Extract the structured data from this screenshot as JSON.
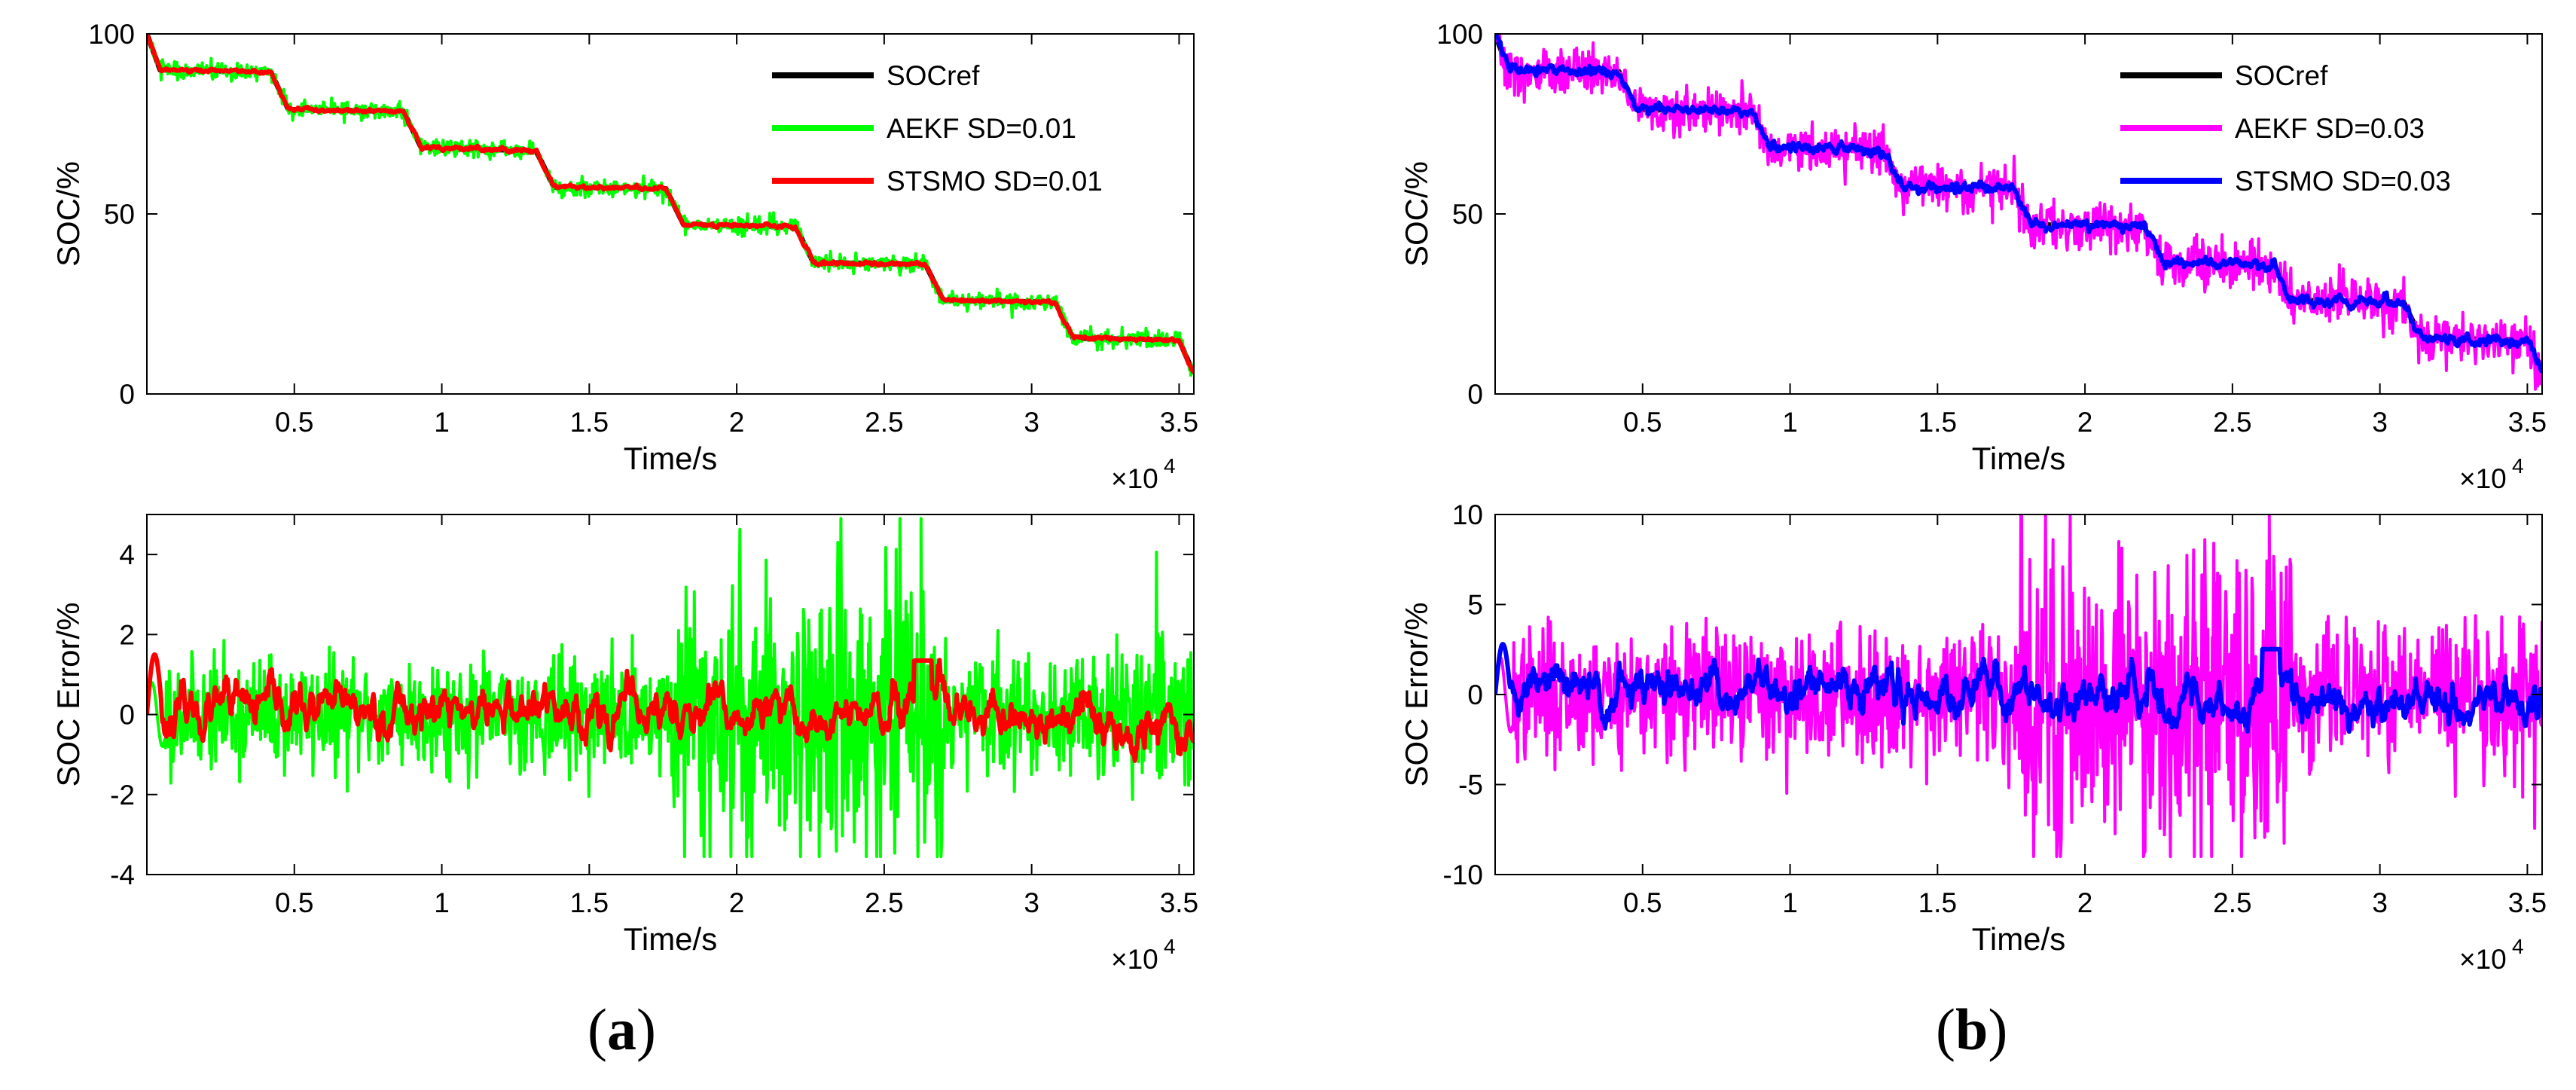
{
  "figure": {
    "panel_labels": [
      {
        "open": "(",
        "letter": "a",
        "close": ")"
      },
      {
        "open": "(",
        "letter": "b",
        "close": ")"
      }
    ]
  },
  "chart_data": [
    {
      "id": "a-top",
      "type": "line",
      "ylabel": "SOC/%",
      "xlabel": "Time/s",
      "x_exponent_label": "×10",
      "x_exponent": "4",
      "xlim": [
        0,
        3.55
      ],
      "ylim": [
        0,
        100
      ],
      "xticks": [
        0.5,
        1,
        1.5,
        2,
        2.5,
        3,
        3.5
      ],
      "xtick_labels": [
        "0.5",
        "1",
        "1.5",
        "2",
        "2.5",
        "3",
        "3.5"
      ],
      "yticks": [
        0,
        50,
        100
      ],
      "ytick_labels": [
        "0",
        "50",
        "100"
      ],
      "legend": {
        "position": "top-right"
      },
      "series": [
        {
          "name": "SOCref",
          "color": "#000000",
          "kind": "soc_ref"
        },
        {
          "name": "AEKF SD=0.01",
          "color": "#00ff00",
          "kind": "soc_noisy",
          "noise": 1.2
        },
        {
          "name": "STSMO SD=0.01",
          "color": "#ff0000",
          "kind": "soc_noisy",
          "noise": 0.35
        }
      ]
    },
    {
      "id": "a-bottom",
      "type": "line",
      "ylabel": "SOC Error/%",
      "xlabel": "Time/s",
      "x_exponent_label": "×10",
      "x_exponent": "4",
      "xlim": [
        0,
        3.55
      ],
      "ylim": [
        -4,
        5
      ],
      "xticks": [
        0.5,
        1,
        1.5,
        2,
        2.5,
        3,
        3.5
      ],
      "xtick_labels": [
        "0.5",
        "1",
        "1.5",
        "2",
        "2.5",
        "3",
        "3.5"
      ],
      "yticks": [
        -4,
        -2,
        0,
        2,
        4
      ],
      "ytick_labels": [
        "-4",
        "-2",
        "0",
        "2",
        "4"
      ],
      "series": [
        {
          "name": "AEKF SD=0.01",
          "color": "#00ff00",
          "kind": "error",
          "amp": 1.0,
          "peak": 4.9,
          "seed": 11
        },
        {
          "name": "STSMO SD=0.01",
          "color": "#ff0000",
          "kind": "error_smooth",
          "amp": 0.55,
          "peak": 1.5,
          "seed": 23
        }
      ]
    },
    {
      "id": "b-top",
      "type": "line",
      "ylabel": "SOC/%",
      "xlabel": "Time/s",
      "x_exponent_label": "×10",
      "x_exponent": "4",
      "xlim": [
        0,
        3.55
      ],
      "ylim": [
        0,
        100
      ],
      "xticks": [
        0.5,
        1,
        1.5,
        2,
        2.5,
        3,
        3.5
      ],
      "xtick_labels": [
        "0.5",
        "1",
        "1.5",
        "2",
        "2.5",
        "3",
        "3.5"
      ],
      "yticks": [
        0,
        50,
        100
      ],
      "ytick_labels": [
        "0",
        "50",
        "100"
      ],
      "legend": {
        "position": "top-right"
      },
      "series": [
        {
          "name": "SOCref",
          "color": "#000000",
          "kind": "soc_ref"
        },
        {
          "name": "AEKF SD=0.03",
          "color": "#ff00ff",
          "kind": "soc_noisy",
          "noise": 3.2
        },
        {
          "name": "STSMO SD=0.03",
          "color": "#0000ff",
          "kind": "soc_noisy",
          "noise": 1.0
        }
      ]
    },
    {
      "id": "b-bottom",
      "type": "line",
      "ylabel": "SOC Error/%",
      "xlabel": "Time/s",
      "x_exponent_label": "×10",
      "x_exponent": "4",
      "xlim": [
        0,
        3.55
      ],
      "ylim": [
        -10,
        10
      ],
      "xticks": [
        0.5,
        1,
        1.5,
        2,
        2.5,
        3,
        3.5
      ],
      "xtick_labels": [
        "0.5",
        "1",
        "1.5",
        "2",
        "2.5",
        "3",
        "3.5"
      ],
      "yticks": [
        -10,
        -5,
        0,
        5,
        10
      ],
      "ytick_labels": [
        "-10",
        "-5",
        "0",
        "5",
        "10"
      ],
      "series": [
        {
          "name": "AEKF SD=0.03",
          "color": "#ff00ff",
          "kind": "error",
          "amp": 2.6,
          "peak": 10,
          "seed": 37
        },
        {
          "name": "STSMO SD=0.03",
          "color": "#0000ff",
          "kind": "error_smooth",
          "amp": 1.2,
          "peak": 2.8,
          "seed": 51
        }
      ]
    }
  ],
  "soc_profile": {
    "steps_x": [
      0,
      0.045,
      0.42,
      0.48,
      0.87,
      0.93,
      1.32,
      1.38,
      1.76,
      1.82,
      2.2,
      2.26,
      2.64,
      2.7,
      3.08,
      3.14,
      3.5,
      3.55
    ],
    "steps_y": [
      100,
      90,
      89.5,
      79,
      78.5,
      68.5,
      67.5,
      57.5,
      57,
      47,
      46.5,
      36.5,
      36,
      26,
      25.5,
      15.5,
      15,
      5.5
    ]
  }
}
